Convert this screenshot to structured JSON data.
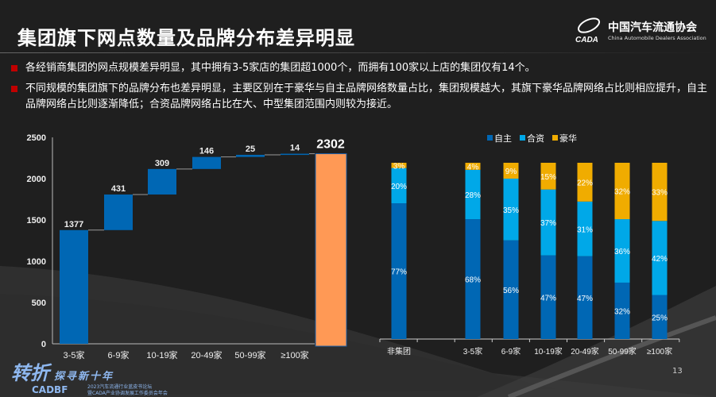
{
  "header": {
    "title": "集团旗下网点数量及品牌分布差异明显",
    "logo_cn": "中国汽车流通协会",
    "logo_en": "China Automobile Dealers Association",
    "logo_mark": "CADA"
  },
  "bullets": [
    "各经销商集团的网点规模差异明显，其中拥有3-5家店的集团超1000个，而拥有100家以上店的集团仅有14个。",
    "不同规模的集团旗下的品牌分布也差异明显，主要区别在于豪华与自主品牌网络数量占比，集团规模越大，其旗下豪华品牌网络占比则相应提升，自主品牌网络占比则逐渐降低；合资品牌网络占比在大、中型集团范围内则较为接近。"
  ],
  "chart_data": [
    {
      "type": "bar",
      "subtype": "waterfall",
      "categories": [
        "3-5家",
        "6-9家",
        "10-19家",
        "20-49家",
        "50-99家",
        "≥100家"
      ],
      "values": [
        1377,
        431,
        309,
        146,
        25,
        14
      ],
      "total": 2302,
      "ylim": [
        0,
        2500
      ],
      "yticks": [
        "0",
        "500",
        "1000",
        "1500",
        "2000",
        "2500"
      ],
      "grid": false,
      "colors": {
        "step": "#0067B4",
        "total": "#FF9955"
      }
    },
    {
      "type": "bar",
      "subtype": "stacked-percent",
      "categories": [
        "非集团",
        "",
        "3-5家",
        "6-9家",
        "10-19家",
        "20-49家",
        "50-99家",
        "≥100家"
      ],
      "series": [
        {
          "name": "自主",
          "color": "#0067B4",
          "values": [
            77,
            null,
            68,
            56,
            47,
            47,
            32,
            25
          ]
        },
        {
          "name": "合资",
          "color": "#00A8E8",
          "values": [
            20,
            null,
            28,
            35,
            37,
            31,
            36,
            42
          ]
        },
        {
          "name": "豪华",
          "color": "#F0AC00",
          "values": [
            3,
            null,
            4,
            9,
            15,
            22,
            32,
            33
          ]
        }
      ],
      "legend": "top",
      "grid": false
    }
  ],
  "footer": {
    "brand": "转折",
    "slogan": "探寻新十年",
    "brand_en": "CADBF",
    "line1": "2023汽车流通行业蓝皮书论坛",
    "line2": "暨CADA产业协调发展工作委员会年会",
    "page": "13"
  }
}
